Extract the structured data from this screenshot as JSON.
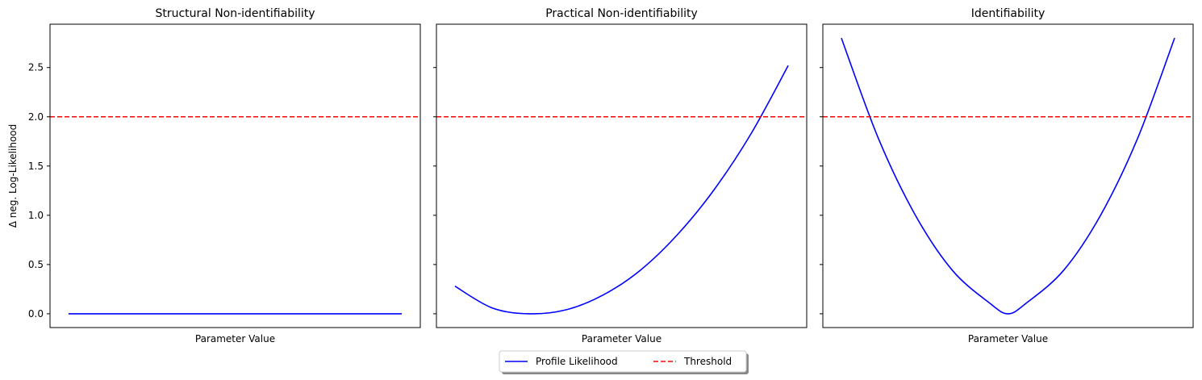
{
  "chart_data": [
    {
      "type": "line",
      "title": "Structural Non-identifiability",
      "xlabel": "Parameter Value",
      "ylabel": "Δ neg. Log-Likelihood",
      "xlim": [
        0,
        1
      ],
      "ylim": [
        -0.14,
        2.94
      ],
      "yticks": [
        "0.0",
        "0.5",
        "1.0",
        "1.5",
        "2.0",
        "2.5"
      ],
      "series": [
        {
          "name": "Profile Likelihood",
          "color": "#0000ff",
          "style": "solid",
          "x": [
            0.05,
            0.95
          ],
          "y": [
            0.0,
            0.0
          ]
        },
        {
          "name": "Threshold",
          "color": "#ff0000",
          "style": "dashed",
          "x": [
            0,
            1
          ],
          "y": [
            2.0,
            2.0
          ]
        }
      ]
    },
    {
      "type": "line",
      "title": "Practical Non-identifiability",
      "xlabel": "Parameter Value",
      "ylim": [
        -0.14,
        2.94
      ],
      "series": [
        {
          "name": "Profile Likelihood",
          "color": "#0000ff",
          "style": "solid",
          "x": [
            0.05,
            0.15,
            0.25,
            0.35,
            0.45,
            0.55,
            0.65,
            0.75,
            0.85,
            0.95
          ],
          "y": [
            0.28,
            0.06,
            0.0,
            0.04,
            0.19,
            0.44,
            0.8,
            1.26,
            1.83,
            2.52
          ]
        },
        {
          "name": "Threshold",
          "color": "#ff0000",
          "style": "dashed",
          "x": [
            0,
            1
          ],
          "y": [
            2.0,
            2.0
          ]
        }
      ]
    },
    {
      "type": "line",
      "title": "Identifiability",
      "xlabel": "Parameter Value",
      "ylim": [
        -0.14,
        2.94
      ],
      "series": [
        {
          "name": "Profile Likelihood",
          "color": "#0000ff",
          "style": "solid",
          "x": [
            0.05,
            0.15,
            0.25,
            0.35,
            0.45,
            0.5,
            0.55,
            0.65,
            0.75,
            0.85,
            0.95
          ],
          "y": [
            2.8,
            1.78,
            1.0,
            0.44,
            0.11,
            0.0,
            0.11,
            0.44,
            1.0,
            1.78,
            2.8
          ]
        },
        {
          "name": "Threshold",
          "color": "#ff0000",
          "style": "dashed",
          "x": [
            0,
            1
          ],
          "y": [
            2.0,
            2.0
          ]
        }
      ]
    }
  ],
  "legend": {
    "position": "bottom-center",
    "items": [
      {
        "label": "Profile Likelihood",
        "color": "#0000ff",
        "style": "solid"
      },
      {
        "label": "Threshold",
        "color": "#ff0000",
        "style": "dashed"
      }
    ]
  }
}
